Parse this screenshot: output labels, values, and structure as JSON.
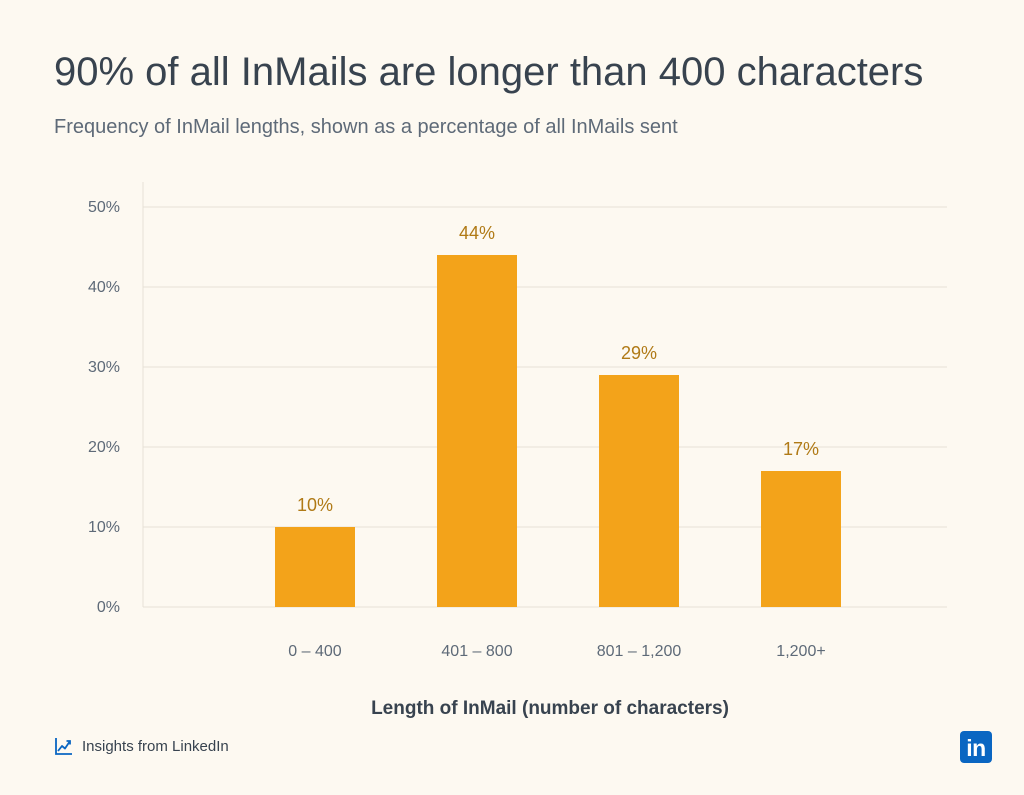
{
  "title": "90% of all InMails are longer than 400 characters",
  "subtitle": "Frequency of InMail lengths, shown as a percentage of all InMails sent",
  "footer": {
    "source": "Insights from LinkedIn",
    "source_icon": "trend-chart-icon",
    "logo_text": "in",
    "logo_icon": "linkedin-logo-icon"
  },
  "colors": {
    "bar": "#f3a31a",
    "data_label": "#b07a16",
    "text_dark": "#38434f",
    "text_muted": "#5e6a78",
    "grid": "#e6e1d6",
    "brand": "#0a66c2",
    "background": "#fdf9f1"
  },
  "chart_data": {
    "type": "bar",
    "categories": [
      "0 – 400",
      "401 – 800",
      "801 – 1,200",
      "1,200+"
    ],
    "values": [
      10,
      44,
      29,
      17
    ],
    "data_labels": [
      "10%",
      "44%",
      "29%",
      "17%"
    ],
    "xlabel": "Length of InMail (number of characters)",
    "ylabel": "",
    "ylim": [
      0,
      50
    ],
    "yticks": [
      0,
      10,
      20,
      30,
      40,
      50
    ],
    "ytick_labels": [
      "0%",
      "10%",
      "20%",
      "30%",
      "40%",
      "50%"
    ],
    "grid": true,
    "legend": "none"
  }
}
